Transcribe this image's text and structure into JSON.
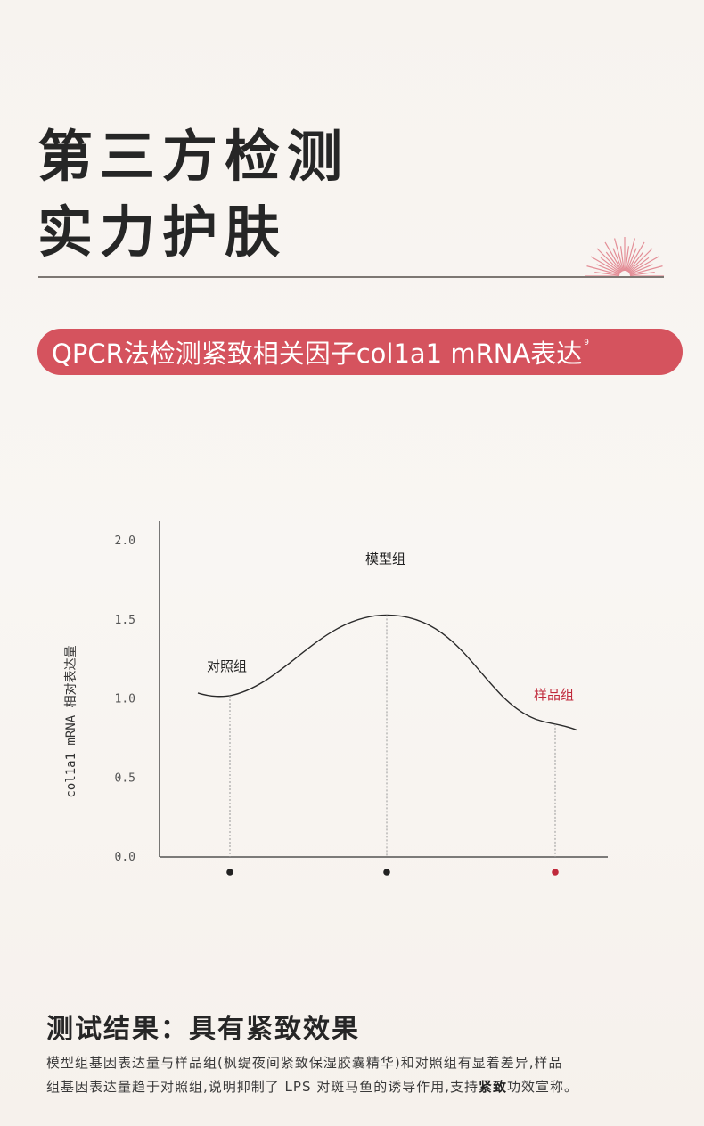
{
  "title": {
    "line1": "第三方检测",
    "line2": "实力护肤"
  },
  "banner": {
    "text": "QPCR法检测紧致相关因子col1a1 mRNA表达",
    "superscript": "9"
  },
  "colors": {
    "accent": "#d5535e",
    "sample_point": "#c0293b",
    "axis": "#333333"
  },
  "chart_data": {
    "type": "line",
    "ylabel": "col1a1 mRNA 相对表达量",
    "ylim": [
      0,
      2.0
    ],
    "yticks": [
      "0.0",
      "0.5",
      "1.0",
      "1.5",
      "2.0"
    ],
    "points": [
      {
        "name": "对照组",
        "y": 1.02,
        "color": "#222222"
      },
      {
        "name": "模型组",
        "y": 1.53,
        "color": "#222222"
      },
      {
        "name": "样品组",
        "y": 0.84,
        "color": "#c0293b"
      }
    ]
  },
  "result": {
    "title": "测试结果：具有紧致效果",
    "desc_line1": "模型组基因表达量与样品组(枫缇夜间紧致保湿胶囊精华)和对照组有显着差异,样品",
    "desc_line2_a": "组基因表达量趋于对照组,说明抑制了 LPS 对斑马鱼的诱导作用,支持",
    "desc_line2_bold": "紧致",
    "desc_line2_b": "功效宣称。"
  }
}
